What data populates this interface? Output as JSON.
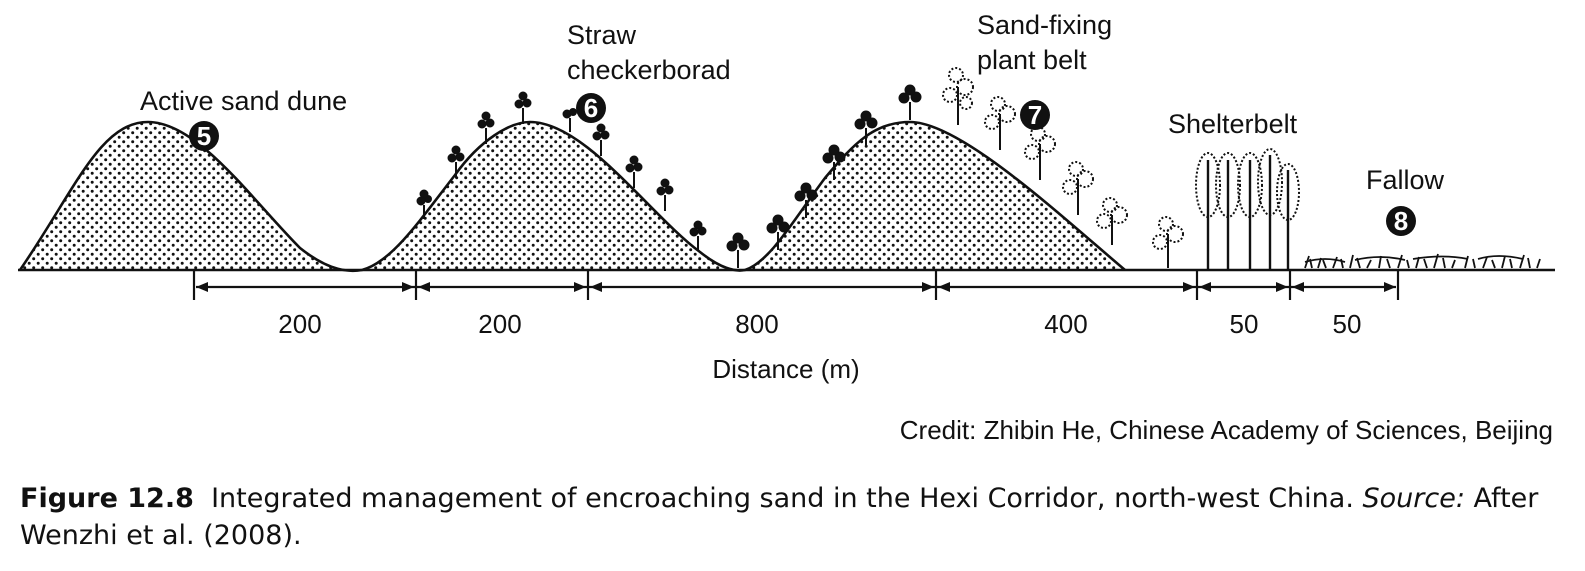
{
  "labels": {
    "active_dune": "Active sand dune",
    "straw_line1": "Straw",
    "straw_line2": "checkerborad",
    "sandfix_line1": "Sand-fixing",
    "sandfix_line2": "plant belt",
    "shelterbelt": "Shelterbelt",
    "fallow": "Fallow"
  },
  "markers": [
    "5",
    "6",
    "7",
    "8"
  ],
  "distances": [
    "200",
    "200",
    "800",
    "400",
    "50",
    "50"
  ],
  "axis_label": "Distance (m)",
  "credit": "Credit: Zhibin He, Chinese Academy of Sciences, Beijing",
  "caption": {
    "figure_number": "Figure 12.8",
    "text": "Integrated management of encroaching sand in the Hexi Corridor, north-west China.",
    "source_label": "Source:",
    "source_text": "After Wenzhi et al. (2008)."
  }
}
